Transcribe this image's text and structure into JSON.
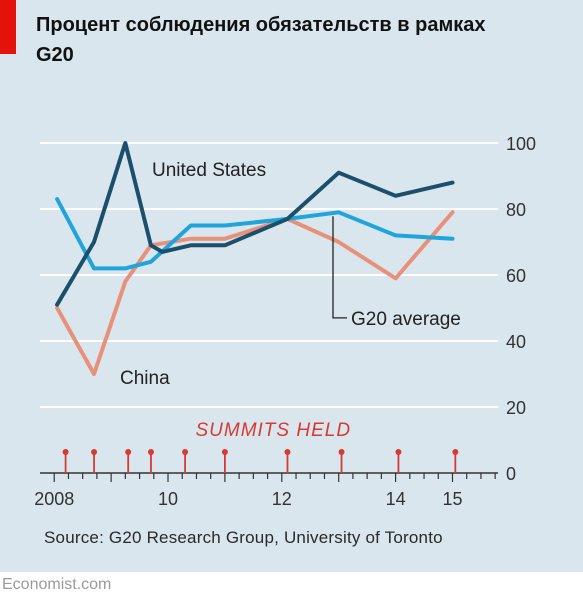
{
  "title": "Процент соблюдения обязательств в рамках G20",
  "source": "Source: G20 Research Group, University of Toronto",
  "footer": "Economist.com",
  "chart_data": {
    "type": "line",
    "xlim": [
      2007.75,
      2015.8
    ],
    "ylim": [
      0,
      100
    ],
    "y_ticks": [
      0,
      20,
      40,
      60,
      80,
      100
    ],
    "x_ticks": [
      {
        "value": 2008,
        "label": "2008"
      },
      {
        "value": 2010,
        "label": "10"
      },
      {
        "value": 2012,
        "label": "12"
      },
      {
        "value": 2014,
        "label": "14"
      },
      {
        "value": 2015,
        "label": "15"
      }
    ],
    "grid": true,
    "series": [
      {
        "name": "United States",
        "color": "#1b4f6b",
        "x": [
          2008.05,
          2008.7,
          2009.25,
          2009.7,
          2009.9,
          2010.4,
          2011.0,
          2012.1,
          2013.0,
          2014.0,
          2015.0
        ],
        "y": [
          51,
          70,
          100,
          69,
          67,
          69,
          69,
          77,
          91,
          84,
          88
        ]
      },
      {
        "name": "China",
        "color": "#e8917a",
        "x": [
          2008.05,
          2008.7,
          2009.25,
          2009.7,
          2010.4,
          2011.0,
          2012.1,
          2013.0,
          2014.0,
          2015.0
        ],
        "y": [
          50,
          30,
          58,
          69,
          71,
          71,
          77,
          70,
          59,
          79
        ]
      },
      {
        "name": "G20 average",
        "color": "#1fa5dc",
        "x": [
          2008.05,
          2008.7,
          2009.25,
          2009.7,
          2010.4,
          2011.0,
          2012.1,
          2013.0,
          2014.0,
          2015.0
        ],
        "y": [
          83,
          62,
          62,
          64,
          75,
          75,
          77,
          79,
          72,
          71
        ]
      }
    ],
    "annotation": "SUMMITS HELD",
    "summits": [
      2008.2,
      2008.7,
      2009.3,
      2009.7,
      2010.3,
      2011.0,
      2012.1,
      2013.05,
      2014.05,
      2015.05
    ]
  }
}
